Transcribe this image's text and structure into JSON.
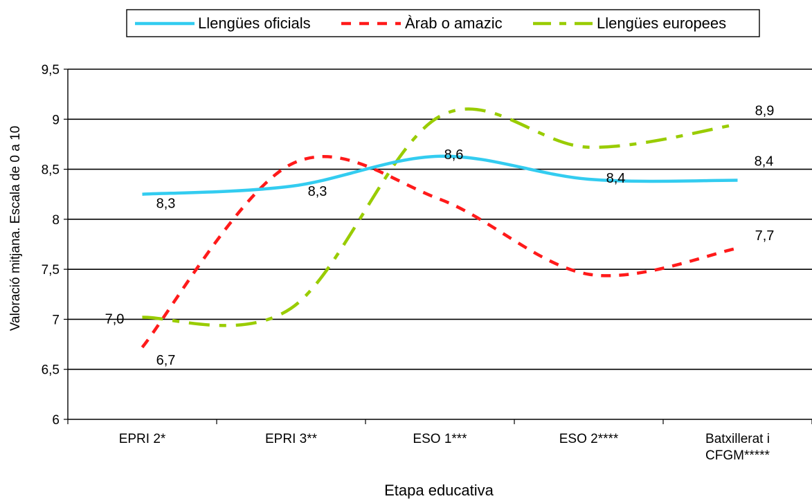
{
  "chart_data": {
    "type": "line",
    "title": "",
    "xlabel": "Etapa educativa",
    "ylabel": "Valoració mitjana. Escala de 0 a 10",
    "categories": [
      [
        "EPRI 2*"
      ],
      [
        "EPRI 3**"
      ],
      [
        "ESO 1***"
      ],
      [
        "ESO 2****"
      ],
      [
        "Batxillerat i",
        "CFGM*****"
      ]
    ],
    "ylim": [
      6,
      9.5
    ],
    "yticks": [
      "6",
      "6,5",
      "7",
      "7,5",
      "8",
      "8,5",
      "9",
      "9,5"
    ],
    "grid": "horizontal",
    "legend_position": "top",
    "series": [
      {
        "name": "Llengües oficials",
        "color": "#33ccf0",
        "dash": "solid",
        "values": [
          8.25,
          8.33,
          8.63,
          8.4,
          8.39
        ],
        "labels": [
          "8,3",
          "8,3",
          "8,6",
          "8,4",
          "8,4"
        ]
      },
      {
        "name": "Àrab o amazic",
        "color": "#ff1a1a",
        "dash": "dashed",
        "values": [
          6.72,
          8.55,
          8.2,
          7.45,
          7.71
        ],
        "labels": [
          "6,7",
          "",
          "",
          "",
          "7,7"
        ]
      },
      {
        "name": "Llengües europees",
        "color": "#99cc00",
        "dash": "dashdot",
        "values": [
          7.02,
          7.11,
          9.03,
          8.72,
          8.95
        ],
        "labels": [
          "7,0",
          "",
          "",
          "",
          "8,9"
        ]
      }
    ]
  }
}
